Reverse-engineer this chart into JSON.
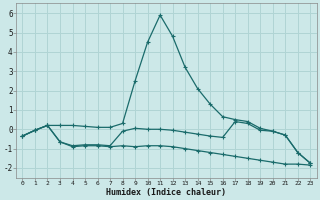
{
  "xlabel": "Humidex (Indice chaleur)",
  "background_color": "#cce8e8",
  "grid_color": "#b0d4d4",
  "line_color": "#1a6b6b",
  "xlim": [
    -0.5,
    23.5
  ],
  "ylim": [
    -2.5,
    6.5
  ],
  "xticks": [
    0,
    1,
    2,
    3,
    4,
    5,
    6,
    7,
    8,
    9,
    10,
    11,
    12,
    13,
    14,
    15,
    16,
    17,
    18,
    19,
    20,
    21,
    22,
    23
  ],
  "yticks": [
    -2,
    -1,
    0,
    1,
    2,
    3,
    4,
    5,
    6
  ],
  "series1_x": [
    0,
    1,
    2,
    3,
    4,
    5,
    6,
    7,
    8,
    9,
    10,
    11,
    12,
    13,
    14,
    15,
    16,
    17,
    18,
    19,
    20,
    21,
    22,
    23
  ],
  "series1_y": [
    -0.35,
    -0.05,
    0.2,
    0.2,
    0.2,
    0.15,
    0.1,
    0.1,
    0.3,
    2.5,
    4.5,
    5.9,
    4.8,
    3.2,
    2.1,
    1.3,
    0.65,
    0.5,
    0.4,
    0.05,
    -0.1,
    -0.3,
    -1.2,
    -1.75
  ],
  "series2_x": [
    0,
    1,
    2,
    3,
    4,
    5,
    6,
    7,
    8,
    9,
    10,
    11,
    12,
    13,
    14,
    15,
    16,
    17,
    18,
    19,
    20,
    21,
    22,
    23
  ],
  "series2_y": [
    -0.35,
    -0.05,
    0.2,
    -0.65,
    -0.85,
    -0.8,
    -0.8,
    -0.85,
    -0.1,
    0.05,
    0.0,
    0.0,
    -0.05,
    -0.15,
    -0.25,
    -0.35,
    -0.42,
    0.4,
    0.3,
    -0.05,
    -0.1,
    -0.3,
    -1.2,
    -1.75
  ],
  "series3_x": [
    0,
    1,
    2,
    3,
    4,
    5,
    6,
    7,
    8,
    9,
    10,
    11,
    12,
    13,
    14,
    15,
    16,
    17,
    18,
    19,
    20,
    21,
    22,
    23
  ],
  "series3_y": [
    -0.35,
    -0.05,
    0.2,
    -0.65,
    -0.9,
    -0.85,
    -0.85,
    -0.9,
    -0.85,
    -0.9,
    -0.85,
    -0.85,
    -0.9,
    -1.0,
    -1.1,
    -1.2,
    -1.3,
    -1.4,
    -1.5,
    -1.6,
    -1.7,
    -1.8,
    -1.8,
    -1.85
  ]
}
